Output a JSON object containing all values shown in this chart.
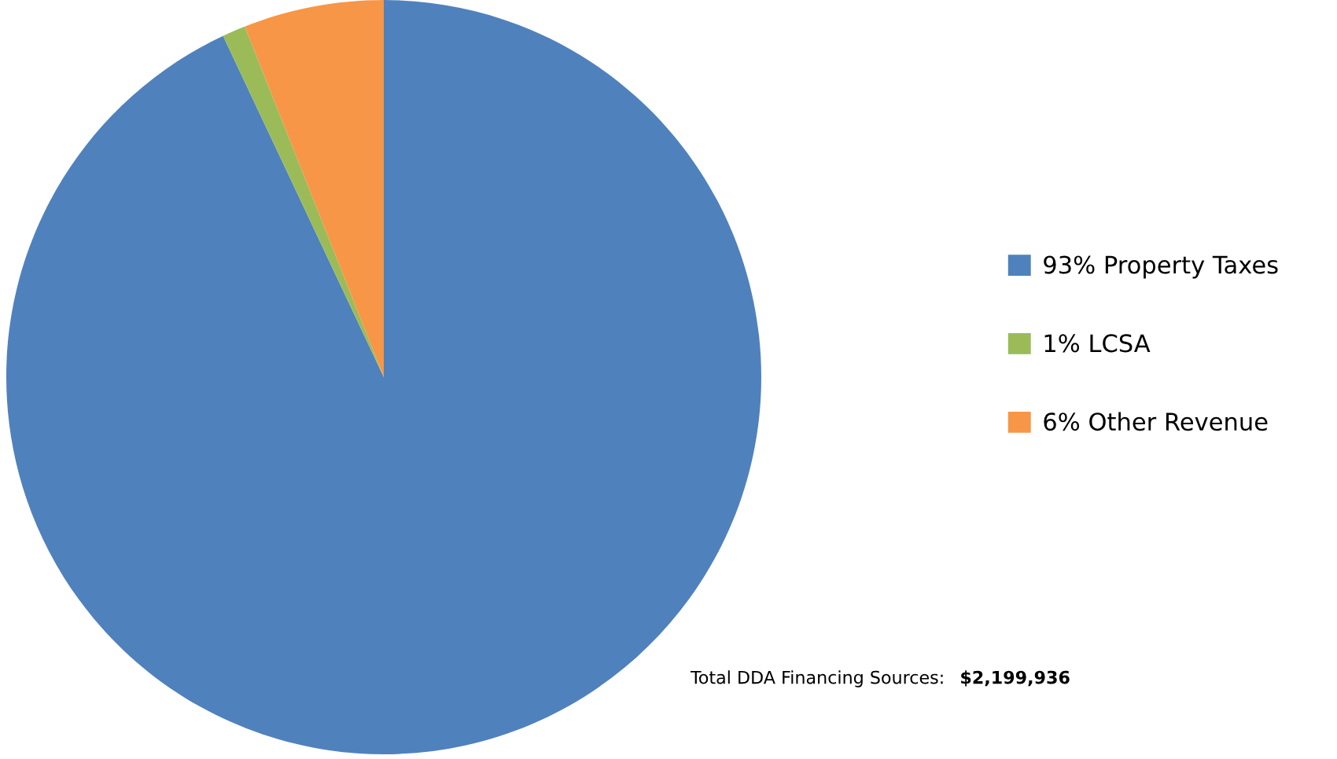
{
  "chart_data": {
    "type": "pie",
    "categories": [
      "93% Property Taxes",
      "1% LCSA",
      "6% Other Revenue"
    ],
    "values": [
      93,
      1,
      6
    ],
    "colors": [
      "#4f81bd",
      "#9bbb59",
      "#f79646"
    ],
    "legend": "right",
    "annotations": [
      "Total DDA Financing Sources:",
      "$2,199,936"
    ]
  }
}
